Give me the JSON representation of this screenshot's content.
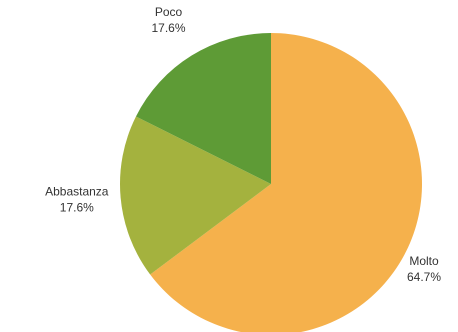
{
  "chart_data": {
    "type": "pie",
    "start_angle_deg": 0,
    "direction": "clockwise",
    "slices": [
      {
        "label": "Molto",
        "value": 64.7,
        "value_label": "64.7%",
        "color": "#f5b14c"
      },
      {
        "label": "Abbastanza",
        "value": 17.6,
        "value_label": "17.6%",
        "color": "#a4b23e"
      },
      {
        "label": "Poco",
        "value": 17.6,
        "value_label": "17.6%",
        "color": "#5e9b36"
      }
    ]
  }
}
